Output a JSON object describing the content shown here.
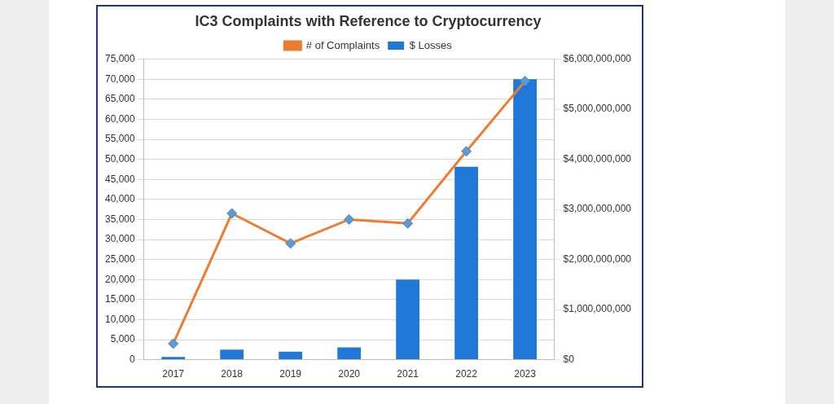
{
  "chart_data": {
    "type": "bar",
    "title": "IC3 Complaints with Reference to Cryptocurrency",
    "categories": [
      "2017",
      "2018",
      "2019",
      "2020",
      "2021",
      "2022",
      "2023"
    ],
    "series": [
      {
        "name": "$ Losses",
        "type": "bar",
        "color": "#1f78d8",
        "axis": "y2",
        "values": [
          56000000,
          200000000,
          160000000,
          246000000,
          1600000000,
          3850000000,
          5600000000
        ]
      },
      {
        "name": "# of Complaints",
        "type": "line",
        "color": "#ed7d31",
        "marker": "diamond",
        "values": [
          4000,
          36500,
          29000,
          35000,
          34000,
          52000,
          69500
        ]
      }
    ],
    "ylim": [
      0,
      75000
    ],
    "yticks": [
      0,
      {
        "value": 5000,
        "label": "5,000"
      },
      {
        "value": 10000,
        "label": "10,000"
      },
      {
        "value": 15000,
        "label": "15,000"
      },
      {
        "value": 20000,
        "label": "20,000"
      },
      {
        "value": 25000,
        "label": "25,000"
      },
      {
        "value": 30000,
        "label": "30,000"
      },
      {
        "value": 35000,
        "label": "35,000"
      },
      {
        "value": 40000,
        "label": "40,000"
      },
      {
        "value": 45000,
        "label": "45,000"
      },
      {
        "value": 50000,
        "label": "50,000"
      },
      {
        "value": 55000,
        "label": "55,000"
      },
      {
        "value": 60000,
        "label": "60,000"
      },
      {
        "value": 65000,
        "label": "65,000"
      },
      {
        "value": 70000,
        "label": "70,000"
      },
      {
        "value": 75000,
        "label": "75,000"
      }
    ],
    "y2lim": [
      0,
      6000000000
    ],
    "y2ticks": [
      {
        "value": 0,
        "label": "$0"
      },
      {
        "value": 1000000000,
        "label": "$1,000,000,000"
      },
      {
        "value": 2000000000,
        "label": "$2,000,000,000"
      },
      {
        "value": 3000000000,
        "label": "$3,000,000,000"
      },
      {
        "value": 4000000000,
        "label": "$4,000,000,000"
      },
      {
        "value": 5000000000,
        "label": "$5,000,000,000"
      },
      {
        "value": 6000000000,
        "label": "$6,000,000,000"
      }
    ],
    "grid": true,
    "legend": "top"
  }
}
